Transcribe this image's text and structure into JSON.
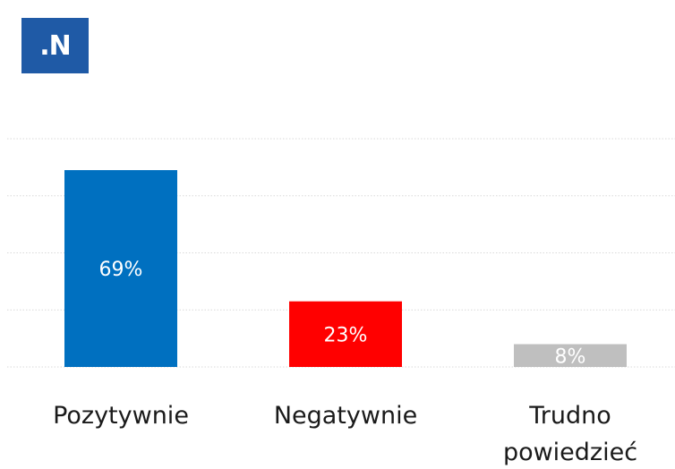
{
  "logo": {
    "text": ".N",
    "color": "#1f5aa6"
  },
  "chart_data": {
    "type": "bar",
    "categories": [
      "Pozytywnie",
      "Negatywnie",
      "Trudno powiedzieć"
    ],
    "category_lines": [
      [
        "Pozytywnie"
      ],
      [
        "Negatywnie"
      ],
      [
        "Trudno",
        "powiedzieć"
      ]
    ],
    "values": [
      69,
      23,
      8
    ],
    "value_labels": [
      "69%",
      "23%",
      "8%"
    ],
    "colors": [
      "#0070c0",
      "#ff0000",
      "#bfbfbf"
    ],
    "ylim": [
      0,
      80
    ],
    "grid": true,
    "title": "",
    "xlabel": "",
    "ylabel": ""
  }
}
